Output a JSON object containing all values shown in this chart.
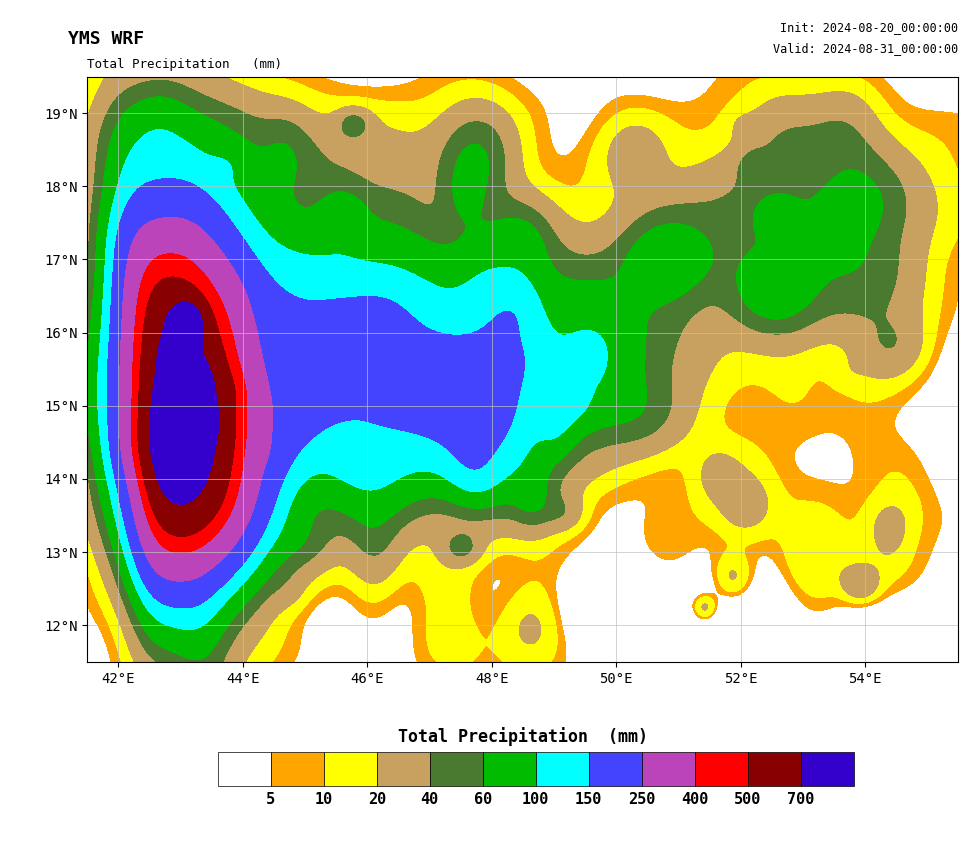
{
  "title_left": "YMS WRF",
  "title_right_line1": "Init: 2024-08-20_00:00:00",
  "title_right_line2": "Valid: 2024-08-31_00:00:00",
  "map_label": "Total Precipitation   (mm)",
  "colorbar_label": "Total Precipitation  (mm)",
  "levels": [
    0,
    5,
    10,
    20,
    40,
    60,
    100,
    150,
    250,
    400,
    500,
    700
  ],
  "level_labels": [
    "5",
    "10",
    "20",
    "40",
    "60",
    "100",
    "150",
    "250",
    "400",
    "500",
    "700"
  ],
  "colors": [
    "#ffffff",
    "#ffa500",
    "#ffff00",
    "#c8a060",
    "#4a7a30",
    "#00bb00",
    "#00ffff",
    "#4444ff",
    "#bb44bb",
    "#ff0000",
    "#880000",
    "#3300cc"
  ],
  "lon_min": 41.5,
  "lon_max": 55.5,
  "lat_min": 11.5,
  "lat_max": 19.5,
  "lon_ticks": [
    42,
    44,
    46,
    48,
    50,
    52,
    54
  ],
  "lat_ticks": [
    12,
    13,
    14,
    15,
    16,
    17,
    18,
    19
  ],
  "background_color": "#ffffff",
  "ocean_color": "#ffffff",
  "grid_color": "#c0c0c0",
  "border_color_country": "#222222",
  "border_color_admin": "#222222"
}
